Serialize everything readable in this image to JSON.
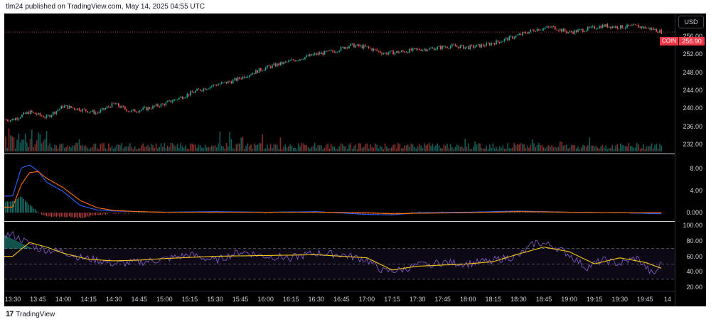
{
  "header": {
    "published_text": "tlm24 published on TradingView.com, May 14, 2025 04:55 UTC"
  },
  "price_scale": {
    "currency": "USD"
  },
  "last_price": {
    "symbol": "COIN",
    "value": "256.90"
  },
  "footer": {
    "brand": "TradingView"
  },
  "colors": {
    "up": "#26a69a",
    "down": "#ef5350",
    "macd": "#2962ff",
    "signal": "#ff6d00",
    "rsi": "#7e57c2",
    "rsi_ma": "#f5c518",
    "background": "#000000"
  },
  "chart_data": [
    {
      "type": "candlestick",
      "pane": "price",
      "y_ticks": [
        "232.00",
        "236.00",
        "240.00",
        "244.00",
        "248.00",
        "252.00",
        "256.00"
      ],
      "ylim": [
        230,
        261
      ],
      "x_ticks": [
        "13:30",
        "13:45",
        "14:00",
        "14:15",
        "14:30",
        "14:45",
        "15:00",
        "15:15",
        "15:30",
        "15:45",
        "16:00",
        "16:15",
        "16:30",
        "16:45",
        "17:00",
        "17:15",
        "17:30",
        "17:45",
        "18:00",
        "18:15",
        "18:30",
        "18:45",
        "19:00",
        "19:15",
        "19:30",
        "19:45",
        "14"
      ],
      "close_path": [
        [
          "13:30",
          237.5
        ],
        [
          "13:40",
          239.2
        ],
        [
          "13:50",
          238.0
        ],
        [
          "14:00",
          240.5
        ],
        [
          "14:10",
          239.8
        ],
        [
          "14:20",
          239.0
        ],
        [
          "14:30",
          241.0
        ],
        [
          "14:40",
          239.3
        ],
        [
          "14:50",
          240.0
        ],
        [
          "15:00",
          241.0
        ],
        [
          "15:10",
          242.5
        ],
        [
          "15:20",
          244.0
        ],
        [
          "15:30",
          245.2
        ],
        [
          "15:40",
          246.0
        ],
        [
          "15:50",
          247.5
        ],
        [
          "16:00",
          249.0
        ],
        [
          "16:10",
          250.0
        ],
        [
          "16:20",
          251.0
        ],
        [
          "16:30",
          252.0
        ],
        [
          "16:40",
          252.6
        ],
        [
          "16:50",
          254.0
        ],
        [
          "17:00",
          253.5
        ],
        [
          "17:10",
          252.2
        ],
        [
          "17:20",
          252.5
        ],
        [
          "17:30",
          253.0
        ],
        [
          "17:40",
          253.3
        ],
        [
          "17:50",
          253.8
        ],
        [
          "18:00",
          253.5
        ],
        [
          "18:10",
          254.0
        ],
        [
          "18:20",
          255.0
        ],
        [
          "18:30",
          256.2
        ],
        [
          "18:40",
          257.5
        ],
        [
          "18:50",
          258.0
        ],
        [
          "19:00",
          256.8
        ],
        [
          "19:10",
          257.5
        ],
        [
          "19:20",
          258.3
        ],
        [
          "19:30",
          258.0
        ],
        [
          "19:40",
          258.2
        ],
        [
          "19:50",
          257.5
        ],
        [
          "19:55",
          256.9
        ]
      ],
      "last_value": 256.9
    },
    {
      "type": "bar",
      "pane": "volume",
      "note": "volume histogram overlaid at bottom of price pane"
    },
    {
      "type": "line",
      "pane": "macd",
      "y_ticks": [
        "0.000",
        "4.00",
        "8.00"
      ],
      "ylim": [
        -1.5,
        10.5
      ],
      "series": [
        {
          "x": [
            "13:30",
            "13:35",
            "13:40",
            "13:45",
            "13:50",
            "14:00",
            "14:10",
            "14:20",
            "14:30",
            "14:45",
            "15:00",
            "15:30",
            "16:00",
            "16:30",
            "17:00",
            "17:15",
            "17:30",
            "18:00",
            "18:30",
            "19:00",
            "19:30",
            "19:55"
          ],
          "values": [
            3.0,
            8.0,
            8.6,
            7.5,
            5.5,
            3.8,
            1.3,
            0.5,
            0.3,
            0.2,
            0.1,
            0.2,
            0.1,
            0.2,
            -0.3,
            -0.4,
            0.0,
            0.1,
            0.3,
            0.1,
            0.0,
            -0.2
          ]
        },
        {
          "x": [
            "13:30",
            "13:35",
            "13:40",
            "13:45",
            "13:50",
            "14:00",
            "14:10",
            "14:20",
            "14:30",
            "14:45",
            "15:00",
            "15:30",
            "16:00",
            "16:30",
            "17:00",
            "17:15",
            "17:30",
            "18:00",
            "18:30",
            "19:00",
            "19:30",
            "19:55"
          ],
          "values": [
            1.0,
            5.0,
            7.2,
            7.4,
            6.2,
            4.5,
            2.2,
            0.9,
            0.4,
            0.2,
            0.1,
            0.1,
            0.1,
            0.1,
            0.0,
            -0.2,
            -0.1,
            0.0,
            0.2,
            0.1,
            0.0,
            0.0
          ]
        }
      ]
    },
    {
      "type": "line",
      "pane": "rsi",
      "y_ticks": [
        "20.00",
        "40.00",
        "60.00",
        "80.00",
        "100.00"
      ],
      "ylim": [
        15,
        105
      ],
      "bands": [
        30,
        50,
        70
      ],
      "series": [
        {
          "x": [
            "13:30",
            "13:35",
            "13:40",
            "13:45",
            "13:50",
            "14:00",
            "14:10",
            "14:20",
            "14:30",
            "14:45",
            "15:00",
            "15:15",
            "15:30",
            "15:45",
            "16:00",
            "16:15",
            "16:30",
            "16:45",
            "17:00",
            "17:10",
            "17:20",
            "17:30",
            "17:45",
            "18:00",
            "18:15",
            "18:30",
            "18:40",
            "18:50",
            "19:00",
            "19:10",
            "19:20",
            "19:30",
            "19:40",
            "19:50",
            "19:55"
          ],
          "values": [
            88,
            82,
            76,
            70,
            68,
            66,
            58,
            55,
            50,
            52,
            56,
            62,
            54,
            66,
            60,
            58,
            64,
            62,
            55,
            40,
            42,
            48,
            52,
            50,
            55,
            60,
            78,
            74,
            62,
            45,
            55,
            50,
            58,
            35,
            52
          ]
        },
        {
          "x": [
            "13:30",
            "13:40",
            "13:50",
            "14:00",
            "14:15",
            "14:30",
            "14:45",
            "15:00",
            "15:30",
            "16:00",
            "16:30",
            "17:00",
            "17:15",
            "17:30",
            "18:00",
            "18:15",
            "18:30",
            "18:45",
            "19:00",
            "19:15",
            "19:30",
            "19:45",
            "19:55"
          ],
          "values": [
            60,
            78,
            72,
            64,
            56,
            54,
            55,
            57,
            60,
            61,
            62,
            58,
            42,
            47,
            50,
            53,
            63,
            72,
            66,
            50,
            58,
            52,
            44
          ]
        }
      ]
    }
  ]
}
